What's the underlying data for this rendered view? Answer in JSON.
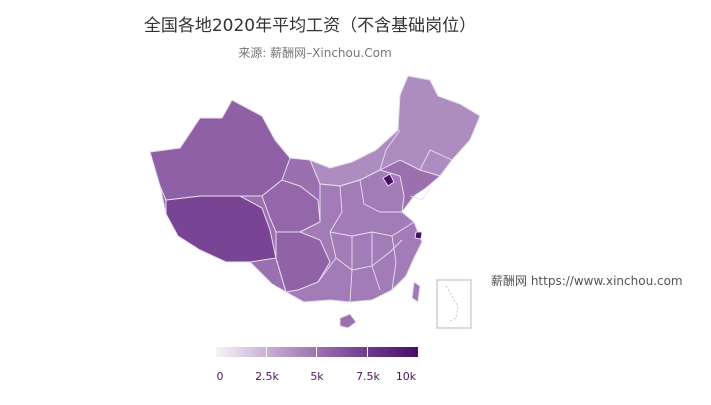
{
  "title": "全国各地2020年平均工资（不含基础岗位）",
  "source": "来源: 薪酬网–Xinchou.Com",
  "watermark": "薪酬网 https://www.xinchou.com",
  "legend": {
    "ticks": [
      {
        "value": 0,
        "label": "0"
      },
      {
        "value": 2500,
        "label": "2.5k"
      },
      {
        "value": 5000,
        "label": "5k"
      },
      {
        "value": 7500,
        "label": "7.5k"
      },
      {
        "value": 10000,
        "label": "10k"
      }
    ],
    "min": 0,
    "max": 10000
  },
  "colors": {
    "low": "#f7f3f9",
    "high": "#4a0d67",
    "border": "#e6dcec"
  }
}
